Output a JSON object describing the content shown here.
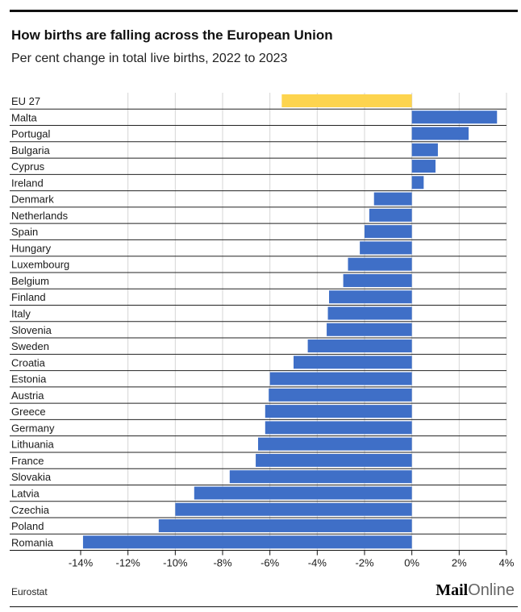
{
  "chart_data": {
    "type": "bar",
    "orientation": "horizontal",
    "title": "How births are falling across the European Union",
    "subtitle": "Per cent change in total live births, 2022 to 2023",
    "categories": [
      "EU 27",
      "Malta",
      "Portugal",
      "Bulgaria",
      "Cyprus",
      "Ireland",
      "Denmark",
      "Netherlands",
      "Spain",
      "Hungary",
      "Luxembourg",
      "Belgium",
      "Finland",
      "Italy",
      "Slovenia",
      "Sweden",
      "Croatia",
      "Estonia",
      "Austria",
      "Greece",
      "Germany",
      "Lithuania",
      "France",
      "Slovakia",
      "Latvia",
      "Czechia",
      "Poland",
      "Romania"
    ],
    "values": [
      -5.5,
      3.6,
      2.4,
      1.1,
      1.0,
      0.5,
      -1.6,
      -1.8,
      -2.0,
      -2.2,
      -2.7,
      -2.9,
      -3.5,
      -3.55,
      -3.6,
      -4.4,
      -5.0,
      -6.0,
      -6.05,
      -6.2,
      -6.2,
      -6.5,
      -6.6,
      -7.7,
      -9.2,
      -10.0,
      -10.7,
      -13.9
    ],
    "highlight_index": 0,
    "colors": {
      "bar": "#3f6fc7",
      "highlight": "#fdd44e",
      "grid": "#d6d6d6",
      "separator": "#222222"
    },
    "xlim": [
      -14,
      4
    ],
    "xticks": [
      -14,
      -12,
      -10,
      -8,
      -6,
      -4,
      -2,
      0,
      2,
      4
    ],
    "xtick_labels": [
      "-14%",
      "-12%",
      "-10%",
      "-8%",
      "-6%",
      "-4%",
      "-2%",
      "0%",
      "2%",
      "4%"
    ],
    "xlabel": "",
    "ylabel": "",
    "grid": true
  },
  "source": "Eurostat",
  "brand": {
    "part1": "Mail",
    "part2": "Online"
  }
}
